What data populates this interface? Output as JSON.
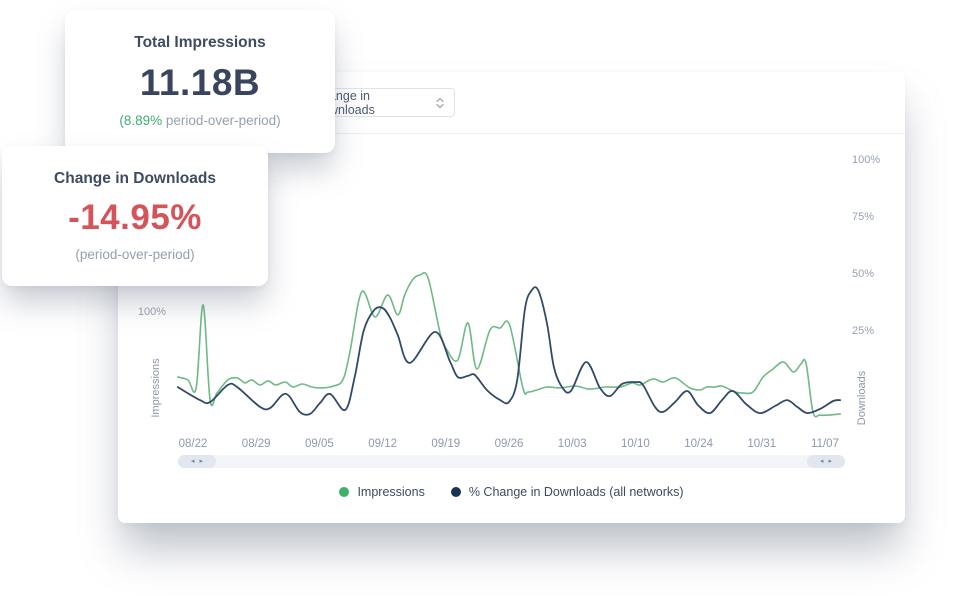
{
  "cards": {
    "total_impressions": {
      "title": "Total Impressions",
      "value": "11.18B",
      "sub_highlight": "(8.89%",
      "sub_rest": " period-over-period)"
    },
    "change_in_downloads": {
      "title": "Change in Downloads",
      "value": "-14.95%",
      "sub": "(period-over-period)"
    }
  },
  "toolbar": {
    "metric_dropdown": {
      "value": "Change in Downloads"
    }
  },
  "icons": {
    "scroll_arrow_left": "◂",
    "scroll_arrow_right": "▸"
  },
  "colors": {
    "positive": "#3fae6e",
    "negative": "#d4545a",
    "impressions_line": "#6fb985",
    "downloads_line": "#314a68",
    "impressions_dot": "#3cb26d",
    "downloads_dot": "#16344f"
  },
  "chart_data": {
    "type": "line",
    "x_labels": [
      "08/22",
      "08/29",
      "09/05",
      "09/12",
      "09/19",
      "09/26",
      "10/03",
      "10/10",
      "10/24",
      "10/31",
      "11/07"
    ],
    "x_unit": "weeks since 08/22 (fractional index into x_labels)",
    "y_unit": "percent",
    "grid": false,
    "legend_position": "bottom-center",
    "left_axis": {
      "title": "Impressions",
      "visible_ticks": [
        "100%"
      ]
    },
    "right_axis": {
      "title": "Downloads",
      "ticks": [
        "100%",
        "75%",
        "50%",
        "25%"
      ]
    },
    "series": [
      {
        "name": "Impressions",
        "axis": "left",
        "color": "#6fb985",
        "points": [
          [
            -0.24,
            71.5
          ],
          [
            -0.08,
            70.2
          ],
          [
            0.05,
            66.7
          ],
          [
            0.16,
            103.1
          ],
          [
            0.27,
            61.4
          ],
          [
            0.38,
            64.5
          ],
          [
            0.55,
            70.2
          ],
          [
            0.7,
            71.1
          ],
          [
            0.82,
            68.9
          ],
          [
            0.93,
            70.2
          ],
          [
            1.06,
            68.0
          ],
          [
            1.19,
            69.8
          ],
          [
            1.31,
            68.0
          ],
          [
            1.46,
            69.3
          ],
          [
            1.58,
            67.1
          ],
          [
            1.73,
            68.4
          ],
          [
            1.88,
            67.1
          ],
          [
            2.04,
            66.7
          ],
          [
            2.22,
            67.5
          ],
          [
            2.37,
            70.2
          ],
          [
            2.48,
            82.0
          ],
          [
            2.67,
            108.8
          ],
          [
            2.88,
            97.8
          ],
          [
            3.08,
            107.5
          ],
          [
            3.24,
            98.7
          ],
          [
            3.35,
            107.5
          ],
          [
            3.47,
            114.0
          ],
          [
            3.59,
            116.2
          ],
          [
            3.72,
            114.9
          ],
          [
            3.91,
            90.8
          ],
          [
            4.02,
            83.3
          ],
          [
            4.19,
            78.9
          ],
          [
            4.35,
            95.2
          ],
          [
            4.49,
            75.0
          ],
          [
            4.7,
            92.1
          ],
          [
            4.86,
            93.0
          ],
          [
            5.01,
            94.3
          ],
          [
            5.22,
            66.7
          ],
          [
            5.3,
            64.9
          ],
          [
            5.44,
            65.8
          ],
          [
            5.6,
            67.1
          ],
          [
            5.81,
            66.7
          ],
          [
            6.05,
            67.5
          ],
          [
            6.28,
            66.2
          ],
          [
            6.52,
            67.1
          ],
          [
            6.76,
            67.1
          ],
          [
            6.95,
            68.9
          ],
          [
            7.07,
            68.0
          ],
          [
            7.23,
            70.2
          ],
          [
            7.31,
            70.6
          ],
          [
            7.44,
            69.3
          ],
          [
            7.63,
            71.1
          ],
          [
            7.86,
            66.7
          ],
          [
            8.02,
            65.8
          ],
          [
            8.13,
            67.1
          ],
          [
            8.26,
            67.1
          ],
          [
            8.37,
            67.5
          ],
          [
            8.58,
            64.9
          ],
          [
            8.69,
            64.5
          ],
          [
            8.86,
            64.9
          ],
          [
            9.02,
            71.5
          ],
          [
            9.16,
            74.6
          ],
          [
            9.34,
            78.1
          ],
          [
            9.5,
            73.7
          ],
          [
            9.62,
            77.2
          ],
          [
            9.7,
            77.6
          ],
          [
            9.81,
            56.1
          ],
          [
            9.92,
            54.8
          ],
          [
            10.05,
            54.8
          ],
          [
            10.24,
            55.3
          ]
        ]
      },
      {
        "name": "% Change in Downloads (all networks)",
        "axis": "right",
        "color": "#314a68",
        "points": [
          [
            -0.24,
            0.4
          ],
          [
            0.11,
            -5.3
          ],
          [
            0.27,
            -6.2
          ],
          [
            0.55,
            1.3
          ],
          [
            0.7,
            0.4
          ],
          [
            1.06,
            -8.3
          ],
          [
            1.22,
            -8.8
          ],
          [
            1.41,
            -3.1
          ],
          [
            1.52,
            -3.5
          ],
          [
            1.69,
            -10.5
          ],
          [
            1.85,
            -11.4
          ],
          [
            2.01,
            -6.6
          ],
          [
            2.17,
            -2.6
          ],
          [
            2.41,
            -9.6
          ],
          [
            2.56,
            5.0
          ],
          [
            2.7,
            25.0
          ],
          [
            2.86,
            34.0
          ],
          [
            3.0,
            35.1
          ],
          [
            3.12,
            30.7
          ],
          [
            3.24,
            23.2
          ],
          [
            3.43,
            11.0
          ],
          [
            3.83,
            24.6
          ],
          [
            4.07,
            11.4
          ],
          [
            4.19,
            4.8
          ],
          [
            4.35,
            5.3
          ],
          [
            4.46,
            5.7
          ],
          [
            4.65,
            -0.9
          ],
          [
            4.86,
            -5.3
          ],
          [
            5.0,
            -6.1
          ],
          [
            5.13,
            3.5
          ],
          [
            5.25,
            34.2
          ],
          [
            5.35,
            42.5
          ],
          [
            5.46,
            43.0
          ],
          [
            5.6,
            28.5
          ],
          [
            5.71,
            9.2
          ],
          [
            5.84,
            0.4
          ],
          [
            5.98,
            -1.3
          ],
          [
            6.22,
            11.4
          ],
          [
            6.44,
            0.0
          ],
          [
            6.6,
            -3.5
          ],
          [
            6.79,
            1.8
          ],
          [
            7.01,
            2.6
          ],
          [
            7.12,
            1.3
          ],
          [
            7.31,
            -8.3
          ],
          [
            7.44,
            -10.5
          ],
          [
            7.63,
            -6.1
          ],
          [
            7.82,
            -1.3
          ],
          [
            7.99,
            -7.5
          ],
          [
            8.18,
            -11.0
          ],
          [
            8.37,
            -5.3
          ],
          [
            8.54,
            -1.3
          ],
          [
            8.75,
            -7.0
          ],
          [
            8.97,
            -11.0
          ],
          [
            9.21,
            -7.9
          ],
          [
            9.4,
            -5.3
          ],
          [
            9.56,
            -8.3
          ],
          [
            9.72,
            -11.0
          ],
          [
            9.92,
            -9.2
          ],
          [
            10.13,
            -5.7
          ],
          [
            10.24,
            -5.3
          ]
        ]
      }
    ],
    "legend": [
      {
        "label": "Impressions",
        "color": "#3cb26d"
      },
      {
        "label": "% Change in Downloads (all networks)",
        "color": "#16344f"
      }
    ]
  }
}
